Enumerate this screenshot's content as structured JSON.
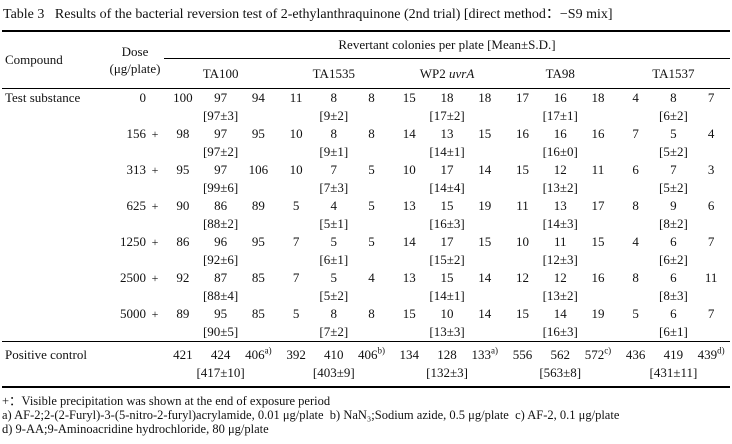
{
  "title": "Table 3   Results of the bacterial reversion test of 2-ethylanthraquinone (2nd trial) [direct method：−S9 mix]",
  "header": {
    "compound": "Compound",
    "dose_line1": "Dose",
    "dose_line2": "(μg/plate)",
    "revertant": "Revertant colonies per plate [Mean±S.D.]",
    "strains": [
      {
        "t": "TA100"
      },
      {
        "t": "TA1535"
      },
      {
        "t": "WP2 ",
        "i": "uvrA"
      },
      {
        "t": "TA98"
      },
      {
        "t": "TA1537"
      }
    ]
  },
  "body": {
    "test_substance_label": "Test substance",
    "rows": [
      {
        "dose": "0",
        "plus": "",
        "values": [
          [
            "100",
            "97",
            "94"
          ],
          [
            "11",
            "8",
            "8"
          ],
          [
            "15",
            "18",
            "18"
          ],
          [
            "17",
            "16",
            "18"
          ],
          [
            "4",
            "8",
            "7"
          ]
        ],
        "means": [
          "[97±3]",
          "[9±2]",
          "[17±2]",
          "[17±1]",
          "[6±2]"
        ]
      },
      {
        "dose": "156",
        "plus": "+",
        "values": [
          [
            "98",
            "97",
            "95"
          ],
          [
            "10",
            "8",
            "8"
          ],
          [
            "14",
            "13",
            "15"
          ],
          [
            "16",
            "16",
            "16"
          ],
          [
            "7",
            "5",
            "4"
          ]
        ],
        "means": [
          "[97±2]",
          "[9±1]",
          "[14±1]",
          "[16±0]",
          "[5±2]"
        ]
      },
      {
        "dose": "313",
        "plus": "+",
        "values": [
          [
            "95",
            "97",
            "106"
          ],
          [
            "10",
            "7",
            "5"
          ],
          [
            "10",
            "17",
            "14"
          ],
          [
            "15",
            "12",
            "11"
          ],
          [
            "6",
            "7",
            "3"
          ]
        ],
        "means": [
          "[99±6]",
          "[7±3]",
          "[14±4]",
          "[13±2]",
          "[5±2]"
        ]
      },
      {
        "dose": "625",
        "plus": "+",
        "values": [
          [
            "90",
            "86",
            "89"
          ],
          [
            "5",
            "4",
            "5"
          ],
          [
            "13",
            "15",
            "19"
          ],
          [
            "11",
            "13",
            "17"
          ],
          [
            "8",
            "9",
            "6"
          ]
        ],
        "means": [
          "[88±2]",
          "[5±1]",
          "[16±3]",
          "[14±3]",
          "[8±2]"
        ]
      },
      {
        "dose": "1250",
        "plus": "+",
        "values": [
          [
            "86",
            "96",
            "95"
          ],
          [
            "7",
            "5",
            "5"
          ],
          [
            "14",
            "17",
            "15"
          ],
          [
            "10",
            "11",
            "15"
          ],
          [
            "4",
            "6",
            "7"
          ]
        ],
        "means": [
          "[92±6]",
          "[6±1]",
          "[15±2]",
          "[12±3]",
          "[6±2]"
        ]
      },
      {
        "dose": "2500",
        "plus": "+",
        "values": [
          [
            "92",
            "87",
            "85"
          ],
          [
            "7",
            "5",
            "4"
          ],
          [
            "13",
            "15",
            "14"
          ],
          [
            "12",
            "12",
            "16"
          ],
          [
            "8",
            "6",
            "11"
          ]
        ],
        "means": [
          "[88±4]",
          "[5±2]",
          "[14±1]",
          "[13±2]",
          "[8±3]"
        ]
      },
      {
        "dose": "5000",
        "plus": "+",
        "values": [
          [
            "89",
            "95",
            "85"
          ],
          [
            "5",
            "8",
            "8"
          ],
          [
            "15",
            "10",
            "14"
          ],
          [
            "15",
            "14",
            "19"
          ],
          [
            "5",
            "6",
            "7"
          ]
        ],
        "means": [
          "[90±5]",
          "[7±2]",
          "[13±3]",
          "[16±3]",
          "[6±1]"
        ]
      }
    ],
    "positive_control": {
      "label": "Positive control",
      "groups": [
        {
          "vals": [
            "421",
            "424",
            "406"
          ],
          "sup": "a)",
          "mean": "[417±10]"
        },
        {
          "vals": [
            "392",
            "410",
            "406"
          ],
          "sup": "b)",
          "mean": "[403±9]"
        },
        {
          "vals": [
            "134",
            "128",
            "133"
          ],
          "sup": "a)",
          "mean": "[132±3]"
        },
        {
          "vals": [
            "556",
            "562",
            "572"
          ],
          "sup": "c)",
          "mean": "[563±8]"
        },
        {
          "vals": [
            "436",
            "419",
            "439"
          ],
          "sup": "d)",
          "mean": "[431±11]"
        }
      ]
    }
  },
  "footnotes": [
    "+：Visible precipitation was shown at the end of exposure period",
    "a) AF-2;2-(2-Furyl)-3-(5-nitro-2-furyl)acrylamide, 0.01 μg/plate  b) NaN₃;Sodium azide, 0.5 μg/plate  c) AF-2, 0.1 μg/plate",
    "d) 9-AA;9-Aminoacridine hydrochloride, 80 μg/plate"
  ],
  "colors": {
    "text": "#111111",
    "rule": "#000000",
    "background": "#ffffff"
  }
}
